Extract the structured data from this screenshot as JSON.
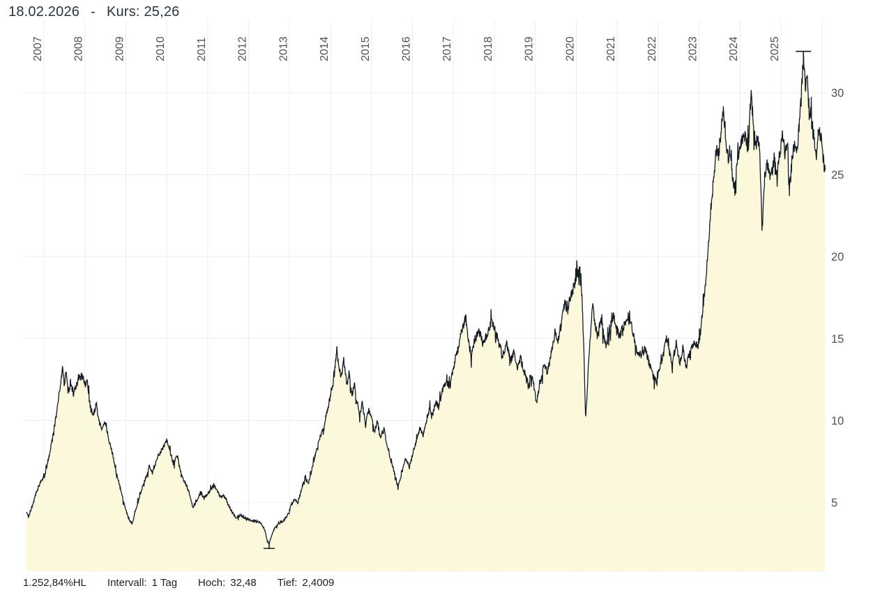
{
  "header": {
    "date": "18.02.2026",
    "separator": "-",
    "kurs_label": "Kurs:",
    "kurs_value": "25,26"
  },
  "footer": {
    "change_hl": "1.252,84%HL",
    "interval_label": "Intervall:",
    "interval_value": "1 Tag",
    "hoch_label": "Hoch:",
    "hoch_value": "32,48",
    "tief_label": "Tief:",
    "tief_value": "2,4009"
  },
  "chart_data": {
    "type": "area",
    "title": "",
    "xlabel": "",
    "ylabel": "",
    "grid": true,
    "y_axis_side": "right",
    "x_tick_labels": [
      "2007",
      "2008",
      "2009",
      "2010",
      "2011",
      "2012",
      "2013",
      "2014",
      "2015",
      "2016",
      "2017",
      "2018",
      "2019",
      "2020",
      "2021",
      "2022",
      "2023",
      "2024",
      "2025"
    ],
    "x_grid_years": [
      2007,
      2008,
      2009,
      2010,
      2011,
      2012,
      2013,
      2014,
      2015,
      2016,
      2017,
      2018,
      2019,
      2020,
      2021,
      2022,
      2023,
      2024,
      2025,
      2026
    ],
    "y_ticks": [
      5,
      10,
      15,
      20,
      25,
      30
    ],
    "x_range_years": [
      2006.57,
      2026.08
    ],
    "ylim": [
      0.8,
      34.2
    ],
    "last": {
      "date": "18.02.2026",
      "value": 25.26
    },
    "high": {
      "t": 2025.55,
      "value": 32.48
    },
    "low": {
      "t": 2012.5,
      "value": 2.4009
    },
    "colors": {
      "line": "#131b23",
      "fill": "#fbf7d9",
      "grid": "#ececec",
      "axis_text": "#515151"
    },
    "series_anchors": [
      [
        2006.57,
        4.4
      ],
      [
        2006.63,
        4.15
      ],
      [
        2006.7,
        4.7
      ],
      [
        2006.78,
        5.3
      ],
      [
        2006.85,
        5.9
      ],
      [
        2006.95,
        6.4
      ],
      [
        2007.02,
        6.6
      ],
      [
        2007.08,
        7.3
      ],
      [
        2007.15,
        8.1
      ],
      [
        2007.22,
        9.0
      ],
      [
        2007.3,
        10.3
      ],
      [
        2007.38,
        11.8
      ],
      [
        2007.45,
        13.2
      ],
      [
        2007.5,
        12.2
      ],
      [
        2007.54,
        12.9
      ],
      [
        2007.6,
        11.8
      ],
      [
        2007.68,
        12.1
      ],
      [
        2007.72,
        11.5
      ],
      [
        2007.8,
        12.3
      ],
      [
        2007.88,
        12.6
      ],
      [
        2007.95,
        12.7
      ],
      [
        2008.02,
        12.1
      ],
      [
        2008.06,
        12.5
      ],
      [
        2008.12,
        10.9
      ],
      [
        2008.2,
        10.3
      ],
      [
        2008.28,
        11.0
      ],
      [
        2008.34,
        10.0
      ],
      [
        2008.42,
        9.4
      ],
      [
        2008.5,
        9.9
      ],
      [
        2008.58,
        8.9
      ],
      [
        2008.66,
        8.1
      ],
      [
        2008.75,
        7.0
      ],
      [
        2008.85,
        6.0
      ],
      [
        2008.95,
        5.0
      ],
      [
        2009.05,
        4.1
      ],
      [
        2009.15,
        3.7
      ],
      [
        2009.22,
        4.3
      ],
      [
        2009.3,
        5.1
      ],
      [
        2009.4,
        5.9
      ],
      [
        2009.5,
        6.6
      ],
      [
        2009.58,
        7.2
      ],
      [
        2009.65,
        6.8
      ],
      [
        2009.75,
        7.6
      ],
      [
        2009.85,
        8.1
      ],
      [
        2009.93,
        8.4
      ],
      [
        2010.0,
        8.8
      ],
      [
        2010.08,
        8.1
      ],
      [
        2010.16,
        7.4
      ],
      [
        2010.25,
        7.9
      ],
      [
        2010.33,
        7.0
      ],
      [
        2010.42,
        6.3
      ],
      [
        2010.5,
        6.0
      ],
      [
        2010.58,
        5.3
      ],
      [
        2010.64,
        4.7
      ],
      [
        2010.72,
        5.0
      ],
      [
        2010.82,
        5.6
      ],
      [
        2010.9,
        5.3
      ],
      [
        2011.0,
        5.5
      ],
      [
        2011.08,
        5.8
      ],
      [
        2011.15,
        6.1
      ],
      [
        2011.25,
        5.6
      ],
      [
        2011.32,
        5.3
      ],
      [
        2011.4,
        5.4
      ],
      [
        2011.5,
        4.9
      ],
      [
        2011.6,
        4.4
      ],
      [
        2011.7,
        4.05
      ],
      [
        2011.8,
        4.25
      ],
      [
        2011.9,
        4.05
      ],
      [
        2012.0,
        3.95
      ],
      [
        2012.1,
        3.9
      ],
      [
        2012.2,
        3.85
      ],
      [
        2012.3,
        3.75
      ],
      [
        2012.4,
        3.3
      ],
      [
        2012.46,
        2.6
      ],
      [
        2012.5,
        2.45
      ],
      [
        2012.56,
        3.0
      ],
      [
        2012.64,
        3.45
      ],
      [
        2012.75,
        3.7
      ],
      [
        2012.85,
        3.9
      ],
      [
        2012.95,
        4.2
      ],
      [
        2013.05,
        4.9
      ],
      [
        2013.12,
        5.2
      ],
      [
        2013.2,
        5.0
      ],
      [
        2013.3,
        5.9
      ],
      [
        2013.38,
        6.5
      ],
      [
        2013.46,
        6.2
      ],
      [
        2013.55,
        7.1
      ],
      [
        2013.65,
        8.2
      ],
      [
        2013.75,
        9.0
      ],
      [
        2013.85,
        9.8
      ],
      [
        2013.95,
        10.9
      ],
      [
        2014.03,
        11.9
      ],
      [
        2014.1,
        13.1
      ],
      [
        2014.15,
        14.5
      ],
      [
        2014.2,
        13.3
      ],
      [
        2014.26,
        12.7
      ],
      [
        2014.32,
        13.6
      ],
      [
        2014.4,
        12.2
      ],
      [
        2014.46,
        13.0
      ],
      [
        2014.52,
        11.5
      ],
      [
        2014.58,
        12.2
      ],
      [
        2014.65,
        11.1
      ],
      [
        2014.72,
        10.3
      ],
      [
        2014.78,
        11.1
      ],
      [
        2014.85,
        9.7
      ],
      [
        2014.93,
        10.7
      ],
      [
        2015.0,
        10.1
      ],
      [
        2015.08,
        9.3
      ],
      [
        2015.14,
        10.0
      ],
      [
        2015.22,
        8.9
      ],
      [
        2015.3,
        9.5
      ],
      [
        2015.4,
        8.3
      ],
      [
        2015.5,
        7.4
      ],
      [
        2015.58,
        6.6
      ],
      [
        2015.65,
        5.9
      ],
      [
        2015.74,
        6.8
      ],
      [
        2015.83,
        7.7
      ],
      [
        2015.92,
        7.2
      ],
      [
        2016.0,
        7.9
      ],
      [
        2016.1,
        8.8
      ],
      [
        2016.18,
        9.6
      ],
      [
        2016.26,
        9.1
      ],
      [
        2016.35,
        10.1
      ],
      [
        2016.42,
        10.7
      ],
      [
        2016.5,
        10.3
      ],
      [
        2016.57,
        11.2
      ],
      [
        2016.64,
        10.8
      ],
      [
        2016.72,
        11.7
      ],
      [
        2016.82,
        12.4
      ],
      [
        2016.9,
        12.1
      ],
      [
        2017.0,
        13.1
      ],
      [
        2017.1,
        14.3
      ],
      [
        2017.2,
        15.4
      ],
      [
        2017.3,
        16.3
      ],
      [
        2017.38,
        14.8
      ],
      [
        2017.44,
        13.9
      ],
      [
        2017.52,
        14.9
      ],
      [
        2017.62,
        15.5
      ],
      [
        2017.72,
        14.7
      ],
      [
        2017.82,
        15.2
      ],
      [
        2017.92,
        16.0
      ],
      [
        2018.0,
        15.7
      ],
      [
        2018.1,
        14.8
      ],
      [
        2018.2,
        14.0
      ],
      [
        2018.3,
        14.7
      ],
      [
        2018.4,
        13.6
      ],
      [
        2018.48,
        14.2
      ],
      [
        2018.56,
        13.2
      ],
      [
        2018.64,
        13.8
      ],
      [
        2018.74,
        12.9
      ],
      [
        2018.84,
        12.3
      ],
      [
        2018.93,
        12.7
      ],
      [
        2019.03,
        11.1
      ],
      [
        2019.12,
        12.3
      ],
      [
        2019.22,
        13.5
      ],
      [
        2019.3,
        12.9
      ],
      [
        2019.4,
        14.3
      ],
      [
        2019.48,
        15.4
      ],
      [
        2019.55,
        14.7
      ],
      [
        2019.65,
        16.2
      ],
      [
        2019.73,
        17.2
      ],
      [
        2019.8,
        16.6
      ],
      [
        2019.9,
        17.9
      ],
      [
        2020.0,
        18.7
      ],
      [
        2020.08,
        19.4
      ],
      [
        2020.14,
        17.6
      ],
      [
        2020.19,
        14.0
      ],
      [
        2020.23,
        9.9
      ],
      [
        2020.28,
        12.5
      ],
      [
        2020.33,
        14.8
      ],
      [
        2020.4,
        17.1
      ],
      [
        2020.46,
        15.9
      ],
      [
        2020.52,
        15.1
      ],
      [
        2020.6,
        16.3
      ],
      [
        2020.67,
        15.2
      ],
      [
        2020.74,
        14.5
      ],
      [
        2020.82,
        15.6
      ],
      [
        2020.9,
        16.4
      ],
      [
        2020.97,
        15.9
      ],
      [
        2021.05,
        15.1
      ],
      [
        2021.13,
        15.6
      ],
      [
        2021.22,
        16.0
      ],
      [
        2021.3,
        16.5
      ],
      [
        2021.4,
        15.2
      ],
      [
        2021.5,
        14.1
      ],
      [
        2021.6,
        13.9
      ],
      [
        2021.68,
        14.4
      ],
      [
        2021.78,
        13.5
      ],
      [
        2021.88,
        12.7
      ],
      [
        2021.95,
        12.35
      ],
      [
        2022.03,
        13.1
      ],
      [
        2022.12,
        13.9
      ],
      [
        2022.2,
        15.1
      ],
      [
        2022.28,
        14.1
      ],
      [
        2022.35,
        13.4
      ],
      [
        2022.44,
        14.8
      ],
      [
        2022.53,
        13.5
      ],
      [
        2022.6,
        14.4
      ],
      [
        2022.69,
        13.3
      ],
      [
        2022.78,
        14.2
      ],
      [
        2022.88,
        14.9
      ],
      [
        2022.96,
        14.5
      ],
      [
        2023.03,
        15.2
      ],
      [
        2023.1,
        16.9
      ],
      [
        2023.17,
        18.8
      ],
      [
        2023.24,
        21.2
      ],
      [
        2023.3,
        23.3
      ],
      [
        2023.37,
        24.9
      ],
      [
        2023.43,
        26.8
      ],
      [
        2023.48,
        26.2
      ],
      [
        2023.55,
        28.1
      ],
      [
        2023.6,
        28.9
      ],
      [
        2023.66,
        27.1
      ],
      [
        2023.72,
        25.9
      ],
      [
        2023.76,
        26.6
      ],
      [
        2023.82,
        24.9
      ],
      [
        2023.87,
        23.9
      ],
      [
        2023.92,
        25.7
      ],
      [
        2023.98,
        26.6
      ],
      [
        2024.05,
        27.1
      ],
      [
        2024.12,
        27.4
      ],
      [
        2024.2,
        26.6
      ],
      [
        2024.27,
        30.0
      ],
      [
        2024.33,
        27.7
      ],
      [
        2024.4,
        26.9
      ],
      [
        2024.47,
        27.3
      ],
      [
        2024.54,
        21.6
      ],
      [
        2024.6,
        24.9
      ],
      [
        2024.68,
        25.8
      ],
      [
        2024.75,
        24.7
      ],
      [
        2024.83,
        25.9
      ],
      [
        2024.9,
        25.3
      ],
      [
        2024.97,
        26.2
      ],
      [
        2025.05,
        27.6
      ],
      [
        2025.1,
        26.3
      ],
      [
        2025.16,
        27.2
      ],
      [
        2025.2,
        23.8
      ],
      [
        2025.26,
        25.6
      ],
      [
        2025.32,
        26.8
      ],
      [
        2025.38,
        26.1
      ],
      [
        2025.44,
        27.8
      ],
      [
        2025.5,
        29.9
      ],
      [
        2025.55,
        32.48
      ],
      [
        2025.6,
        30.3
      ],
      [
        2025.63,
        31.4
      ],
      [
        2025.68,
        29.2
      ],
      [
        2025.74,
        28.5
      ],
      [
        2025.8,
        27.3
      ],
      [
        2025.86,
        26.0
      ],
      [
        2025.91,
        27.2
      ],
      [
        2025.96,
        27.5
      ],
      [
        2026.02,
        26.3
      ],
      [
        2026.05,
        25.6
      ],
      [
        2026.08,
        25.26
      ]
    ]
  }
}
